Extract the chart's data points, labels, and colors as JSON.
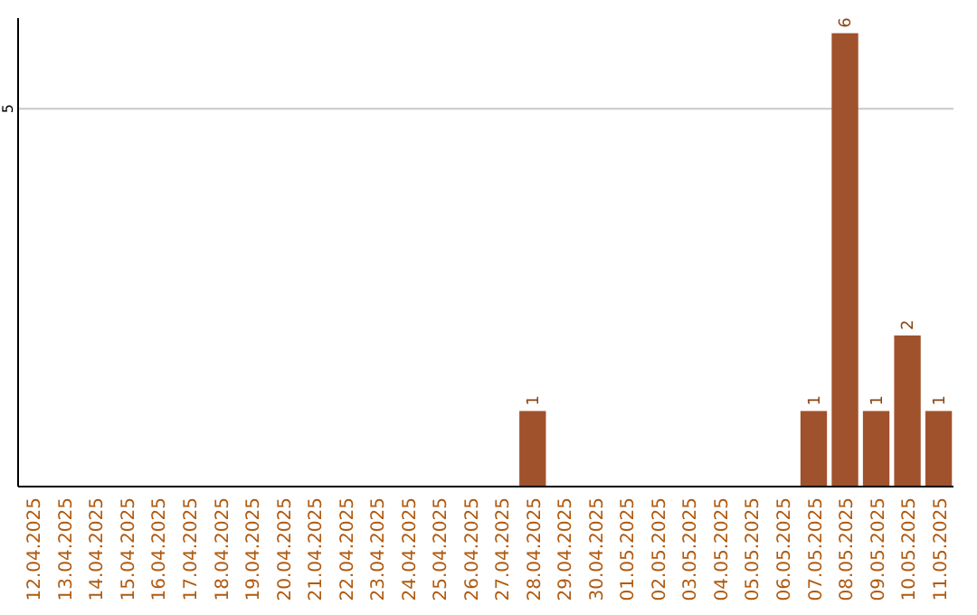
{
  "chart_data": {
    "type": "bar",
    "categories": [
      "12.04.2025",
      "13.04.2025",
      "14.04.2025",
      "15.04.2025",
      "16.04.2025",
      "17.04.2025",
      "18.04.2025",
      "19.04.2025",
      "20.04.2025",
      "21.04.2025",
      "22.04.2025",
      "23.04.2025",
      "24.04.2025",
      "25.04.2025",
      "26.04.2025",
      "27.04.2025",
      "28.04.2025",
      "29.04.2025",
      "30.04.2025",
      "01.05.2025",
      "02.05.2025",
      "03.05.2025",
      "04.05.2025",
      "05.05.2025",
      "06.05.2025",
      "07.05.2025",
      "08.05.2025",
      "09.05.2025",
      "10.05.2025",
      "11.05.2025"
    ],
    "values": [
      null,
      null,
      null,
      null,
      null,
      null,
      null,
      null,
      null,
      null,
      null,
      null,
      null,
      null,
      null,
      null,
      1,
      null,
      null,
      null,
      null,
      null,
      null,
      null,
      null,
      1,
      6,
      1,
      2,
      1
    ],
    "color": "#a0522d",
    "ylim": [
      0,
      6.2
    ],
    "yticks": [
      5
    ],
    "grid": "y",
    "data_labels": true
  }
}
